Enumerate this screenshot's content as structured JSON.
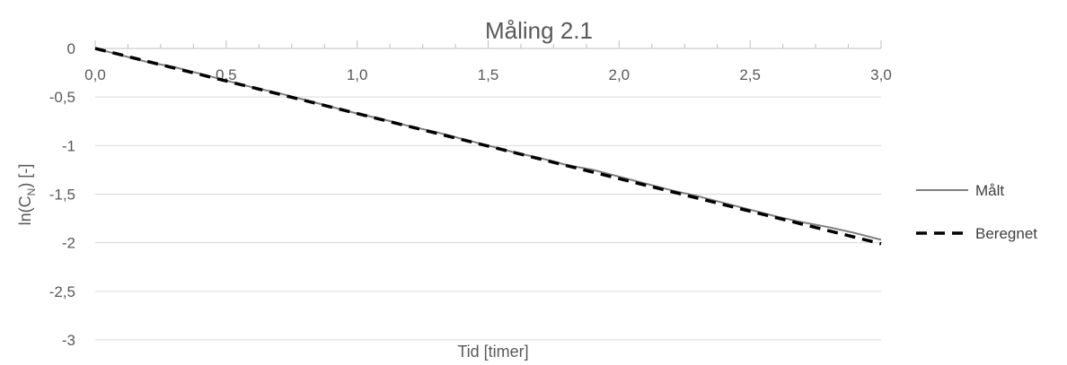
{
  "chart_data": {
    "type": "line",
    "title": "Måling 2.1",
    "xlabel": "Tid [timer]",
    "ylabel_main": "ln(C",
    "ylabel_sub": "N",
    "ylabel_tail": ") [-]",
    "xlim": [
      0,
      3
    ],
    "ylim": [
      -3,
      0
    ],
    "x_ticks": [
      0,
      0.5,
      1,
      1.5,
      2,
      2.5,
      3
    ],
    "x_tick_labels": [
      "0,0",
      "0,5",
      "1,0",
      "1,5",
      "2,0",
      "2,5",
      "3,0"
    ],
    "y_ticks": [
      0,
      -0.5,
      -1,
      -1.5,
      -2,
      -2.5,
      -3
    ],
    "y_tick_labels": [
      "0",
      "-0,5",
      "-1",
      "-1,5",
      "-2",
      "-2,5",
      "-3"
    ],
    "grid": true,
    "legend_position": "right",
    "series": [
      {
        "name": "Målt",
        "color": "#7f7f7f",
        "dash": "solid",
        "x": [
          0,
          0.1,
          0.2,
          0.3,
          0.4,
          0.5,
          0.6,
          0.7,
          0.8,
          0.9,
          1.0,
          1.1,
          1.2,
          1.3,
          1.4,
          1.5,
          1.6,
          1.7,
          1.8,
          1.9,
          2.0,
          2.1,
          2.2,
          2.3,
          2.4,
          2.5,
          2.6,
          2.7,
          2.8,
          2.9,
          3.0
        ],
        "y": [
          0,
          -0.07,
          -0.14,
          -0.19,
          -0.26,
          -0.33,
          -0.4,
          -0.46,
          -0.53,
          -0.6,
          -0.67,
          -0.73,
          -0.8,
          -0.86,
          -0.93,
          -1.0,
          -1.07,
          -1.13,
          -1.2,
          -1.25,
          -1.32,
          -1.39,
          -1.46,
          -1.52,
          -1.59,
          -1.66,
          -1.73,
          -1.79,
          -1.84,
          -1.9,
          -1.97
        ]
      },
      {
        "name": "Beregnet",
        "color": "#000000",
        "dash": "dashed",
        "x": [
          0,
          3
        ],
        "y": [
          0,
          -2.01
        ]
      }
    ]
  }
}
